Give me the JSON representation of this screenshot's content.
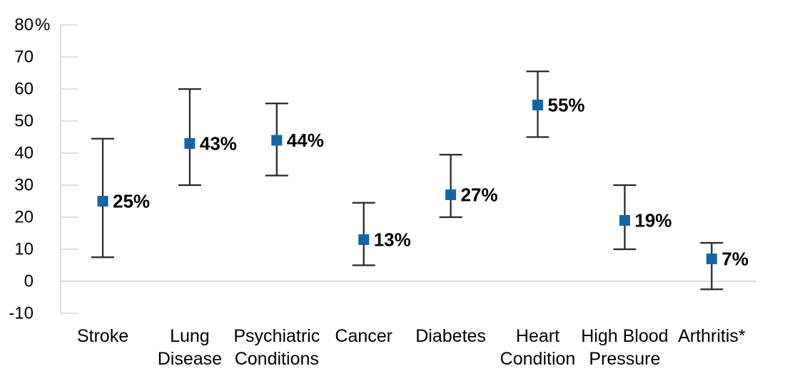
{
  "chart_data": {
    "type": "scatter",
    "subtype": "point-estimates-with-error-bars",
    "title": "",
    "xlabel": "",
    "ylabel": "",
    "ylim": [
      -10,
      80
    ],
    "grid": "zero-line-only",
    "legend_position": "none",
    "y_ticks": [
      {
        "value": 80,
        "label": "80",
        "suffix": "%"
      },
      {
        "value": 70,
        "label": "70",
        "suffix": ""
      },
      {
        "value": 60,
        "label": "60",
        "suffix": ""
      },
      {
        "value": 50,
        "label": "50",
        "suffix": ""
      },
      {
        "value": 40,
        "label": "40",
        "suffix": ""
      },
      {
        "value": 30,
        "label": "30",
        "suffix": ""
      },
      {
        "value": 20,
        "label": "20",
        "suffix": ""
      },
      {
        "value": 10,
        "label": "10",
        "suffix": ""
      },
      {
        "value": 0,
        "label": "0",
        "suffix": ""
      },
      {
        "value": -10,
        "label": "-10",
        "suffix": ""
      }
    ],
    "categories": [
      "Stroke",
      "Lung Disease",
      "Psychiatric Conditions",
      "Cancer",
      "Diabetes",
      "Heart Condition",
      "High Blood Pressure",
      "Arthritis*"
    ],
    "points": [
      {
        "category": "Stroke",
        "label_lines": [
          "Stroke"
        ],
        "value": 25,
        "value_label": "25%",
        "ci_low": 7.5,
        "ci_high": 44.5
      },
      {
        "category": "Lung Disease",
        "label_lines": [
          "Lung",
          "Disease"
        ],
        "value": 43,
        "value_label": "43%",
        "ci_low": 30,
        "ci_high": 60
      },
      {
        "category": "Psychiatric Conditions",
        "label_lines": [
          "Psychiatric",
          "Conditions"
        ],
        "value": 44,
        "value_label": "44%",
        "ci_low": 33,
        "ci_high": 55.5
      },
      {
        "category": "Cancer",
        "label_lines": [
          "Cancer"
        ],
        "value": 13,
        "value_label": "13%",
        "ci_low": 5,
        "ci_high": 24.5
      },
      {
        "category": "Diabetes",
        "label_lines": [
          "Diabetes"
        ],
        "value": 27,
        "value_label": "27%",
        "ci_low": 20,
        "ci_high": 39.5
      },
      {
        "category": "Heart Condition",
        "label_lines": [
          "Heart",
          "Condition"
        ],
        "value": 55,
        "value_label": "55%",
        "ci_low": 45,
        "ci_high": 65.5
      },
      {
        "category": "High Blood Pressure",
        "label_lines": [
          "High Blood",
          "Pressure"
        ],
        "value": 19,
        "value_label": "19%",
        "ci_low": 10,
        "ci_high": 30
      },
      {
        "category": "Arthritis*",
        "label_lines": [
          "Arthritis*"
        ],
        "value": 7,
        "value_label": "7%",
        "ci_low": -2.5,
        "ci_high": 12
      }
    ],
    "colors": {
      "marker": "#1165A8",
      "error_bar": "#262626",
      "axis_line": "#D9D9D9",
      "zero_line": "#D9D9D9",
      "text": "#000000"
    }
  }
}
